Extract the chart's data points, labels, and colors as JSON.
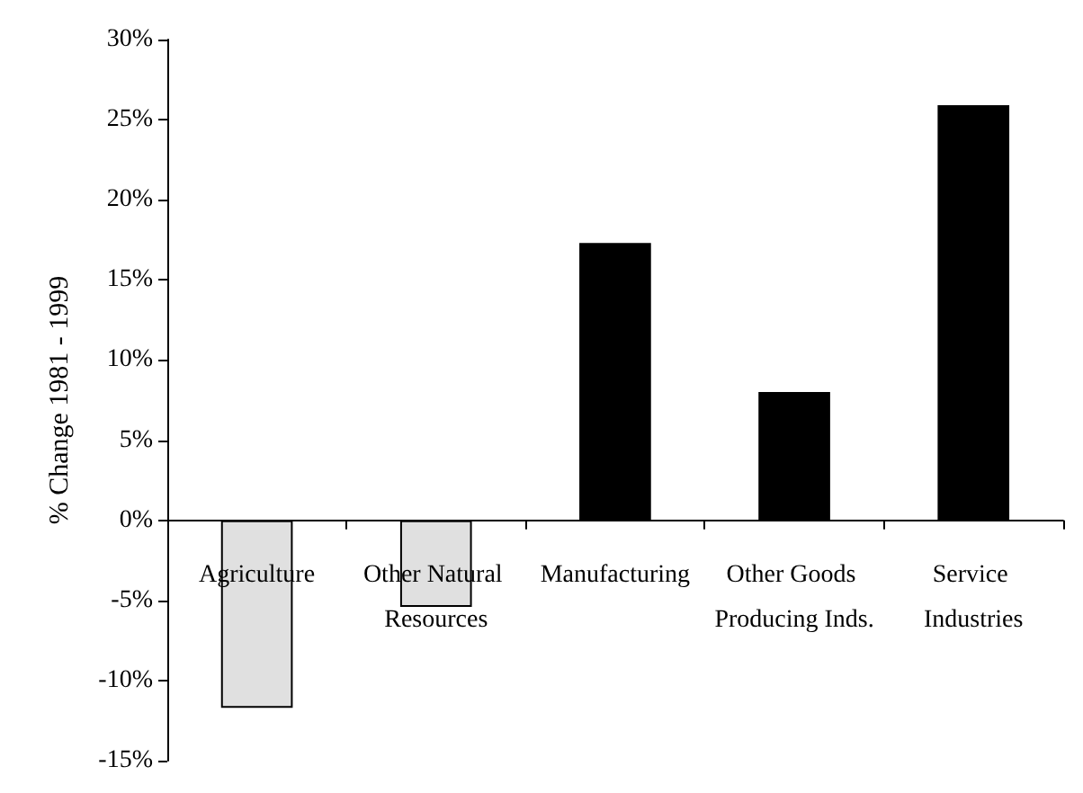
{
  "chart_data": {
    "type": "bar",
    "ylabel": "% Change 1981 - 1999",
    "categories": [
      "Agriculture",
      "Other Natural Resources",
      "Manufacturing",
      "Other Goods Producing Inds.",
      "Service Industries"
    ],
    "values": [
      -11.7,
      -5.4,
      17.3,
      8.0,
      25.9
    ],
    "colors": [
      "#e0e0e0",
      "#e0e0e0",
      "#000000",
      "#000000",
      "#000000"
    ],
    "ylim": [
      -15,
      30
    ],
    "yticks": [
      {
        "value": -15,
        "label": "-15%"
      },
      {
        "value": -10,
        "label": "-10%"
      },
      {
        "value": -5,
        "label": "-5%"
      },
      {
        "value": 0,
        "label": "0%"
      },
      {
        "value": 5,
        "label": "5%"
      },
      {
        "value": 10,
        "label": "10%"
      },
      {
        "value": 15,
        "label": "15%"
      },
      {
        "value": 20,
        "label": "20%"
      },
      {
        "value": 25,
        "label": "25%"
      },
      {
        "value": 30,
        "label": "30%"
      }
    ],
    "grid": false
  }
}
